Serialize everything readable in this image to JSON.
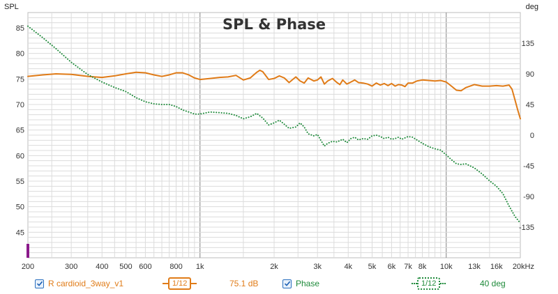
{
  "chart_data": {
    "type": "line",
    "title": "SPL & Phase",
    "left_axis": {
      "label": "SPL",
      "ticks": [
        45,
        50,
        55,
        60,
        65,
        70,
        75,
        80,
        85
      ],
      "range": [
        40,
        88
      ]
    },
    "right_axis": {
      "label": "deg",
      "ticks": [
        -135,
        -90,
        -45,
        0,
        45,
        90,
        135
      ],
      "range": [
        -180,
        180
      ]
    },
    "x_axis": {
      "scale": "log",
      "range": [
        200,
        20000
      ],
      "ticks": [
        {
          "v": 200,
          "label": "200"
        },
        {
          "v": 300,
          "label": "300"
        },
        {
          "v": 400,
          "label": "400"
        },
        {
          "v": 500,
          "label": "500"
        },
        {
          "v": 600,
          "label": "600"
        },
        {
          "v": 800,
          "label": "800"
        },
        {
          "v": 1000,
          "label": "1k"
        },
        {
          "v": 2000,
          "label": "2k"
        },
        {
          "v": 3000,
          "label": "3k"
        },
        {
          "v": 4000,
          "label": "4k"
        },
        {
          "v": 5000,
          "label": "5k"
        },
        {
          "v": 6000,
          "label": "6k"
        },
        {
          "v": 7000,
          "label": "7k"
        },
        {
          "v": 8000,
          "label": "8k"
        },
        {
          "v": 10000,
          "label": "10k"
        },
        {
          "v": 13000,
          "label": "13k"
        },
        {
          "v": 16000,
          "label": "16k"
        },
        {
          "v": 20000,
          "label": "20kHz"
        }
      ]
    },
    "grid": true,
    "colors": {
      "spl": "#e07b17",
      "phase": "#1e8a3a",
      "grid_minor": "#dcdcdc",
      "grid_major": "#8c8c8c",
      "marker": "#8b1a8b"
    },
    "series": [
      {
        "name": "R cardioid_3way_v1",
        "axis": "left",
        "unit": "dB",
        "style": "solid",
        "points": [
          [
            200,
            75.5
          ],
          [
            230,
            75.8
          ],
          [
            260,
            76.0
          ],
          [
            300,
            75.9
          ],
          [
            350,
            75.5
          ],
          [
            400,
            75.3
          ],
          [
            450,
            75.6
          ],
          [
            500,
            76.0
          ],
          [
            550,
            76.3
          ],
          [
            600,
            76.2
          ],
          [
            650,
            75.8
          ],
          [
            700,
            75.5
          ],
          [
            750,
            75.8
          ],
          [
            800,
            76.2
          ],
          [
            850,
            76.2
          ],
          [
            900,
            75.8
          ],
          [
            950,
            75.2
          ],
          [
            1000,
            74.9
          ],
          [
            1100,
            75.1
          ],
          [
            1200,
            75.3
          ],
          [
            1300,
            75.4
          ],
          [
            1400,
            75.7
          ],
          [
            1500,
            74.8
          ],
          [
            1600,
            75.2
          ],
          [
            1700,
            76.3
          ],
          [
            1750,
            76.7
          ],
          [
            1800,
            76.4
          ],
          [
            1900,
            74.9
          ],
          [
            2000,
            75.1
          ],
          [
            2100,
            75.6
          ],
          [
            2200,
            75.2
          ],
          [
            2300,
            74.3
          ],
          [
            2450,
            75.4
          ],
          [
            2550,
            74.6
          ],
          [
            2650,
            74.2
          ],
          [
            2750,
            75.2
          ],
          [
            2900,
            74.6
          ],
          [
            3000,
            74.8
          ],
          [
            3100,
            75.4
          ],
          [
            3200,
            74.0
          ],
          [
            3300,
            74.6
          ],
          [
            3450,
            75.1
          ],
          [
            3600,
            74.3
          ],
          [
            3700,
            73.9
          ],
          [
            3800,
            74.8
          ],
          [
            3950,
            74.0
          ],
          [
            4100,
            74.4
          ],
          [
            4250,
            74.8
          ],
          [
            4400,
            74.3
          ],
          [
            4600,
            74.2
          ],
          [
            4800,
            74.0
          ],
          [
            5000,
            73.6
          ],
          [
            5200,
            74.2
          ],
          [
            5400,
            73.8
          ],
          [
            5600,
            74.1
          ],
          [
            5800,
            73.7
          ],
          [
            6000,
            74.1
          ],
          [
            6200,
            73.6
          ],
          [
            6400,
            73.9
          ],
          [
            6600,
            73.8
          ],
          [
            6800,
            73.5
          ],
          [
            7000,
            74.2
          ],
          [
            7300,
            74.2
          ],
          [
            7600,
            74.6
          ],
          [
            8000,
            74.8
          ],
          [
            8500,
            74.7
          ],
          [
            9000,
            74.6
          ],
          [
            9500,
            74.7
          ],
          [
            10000,
            74.4
          ],
          [
            10500,
            73.6
          ],
          [
            11000,
            72.8
          ],
          [
            11500,
            72.7
          ],
          [
            12000,
            73.3
          ],
          [
            13000,
            73.9
          ],
          [
            14000,
            73.6
          ],
          [
            15000,
            73.6
          ],
          [
            16000,
            73.7
          ],
          [
            17000,
            73.6
          ],
          [
            18000,
            73.8
          ],
          [
            18500,
            73.0
          ],
          [
            19000,
            71.0
          ],
          [
            19500,
            69.0
          ],
          [
            20000,
            67.2
          ]
        ]
      },
      {
        "name": "Phase",
        "axis": "right",
        "unit": "deg",
        "style": "dotted",
        "points": [
          [
            200,
            160
          ],
          [
            230,
            143
          ],
          [
            260,
            127
          ],
          [
            300,
            107
          ],
          [
            350,
            89
          ],
          [
            400,
            78
          ],
          [
            450,
            70
          ],
          [
            500,
            64
          ],
          [
            550,
            55
          ],
          [
            600,
            49
          ],
          [
            650,
            46
          ],
          [
            700,
            45
          ],
          [
            750,
            45
          ],
          [
            800,
            42
          ],
          [
            850,
            37
          ],
          [
            900,
            34
          ],
          [
            950,
            31
          ],
          [
            1000,
            31
          ],
          [
            1100,
            34
          ],
          [
            1200,
            33
          ],
          [
            1300,
            32
          ],
          [
            1400,
            29
          ],
          [
            1500,
            24
          ],
          [
            1600,
            27
          ],
          [
            1700,
            32
          ],
          [
            1800,
            25
          ],
          [
            1900,
            15
          ],
          [
            2000,
            18
          ],
          [
            2100,
            22
          ],
          [
            2200,
            16
          ],
          [
            2300,
            10
          ],
          [
            2450,
            12
          ],
          [
            2550,
            18
          ],
          [
            2650,
            12
          ],
          [
            2750,
            2
          ],
          [
            2900,
            -1
          ],
          [
            3000,
            1
          ],
          [
            3100,
            -8
          ],
          [
            3200,
            -16
          ],
          [
            3300,
            -12
          ],
          [
            3450,
            -9
          ],
          [
            3600,
            -10
          ],
          [
            3800,
            -6
          ],
          [
            3950,
            -11
          ],
          [
            4100,
            -5
          ],
          [
            4250,
            -3
          ],
          [
            4400,
            -7
          ],
          [
            4600,
            -5
          ],
          [
            4800,
            -6
          ],
          [
            5000,
            -1
          ],
          [
            5200,
            0
          ],
          [
            5400,
            -2
          ],
          [
            5600,
            -5
          ],
          [
            5800,
            -3
          ],
          [
            6000,
            -6
          ],
          [
            6200,
            -5
          ],
          [
            6400,
            -3
          ],
          [
            6600,
            -6
          ],
          [
            6800,
            -4
          ],
          [
            7000,
            -2
          ],
          [
            7300,
            -3
          ],
          [
            7600,
            -7
          ],
          [
            8000,
            -12
          ],
          [
            8500,
            -17
          ],
          [
            9000,
            -20
          ],
          [
            9500,
            -22
          ],
          [
            10000,
            -29
          ],
          [
            10500,
            -36
          ],
          [
            11000,
            -42
          ],
          [
            11500,
            -43
          ],
          [
            12000,
            -42
          ],
          [
            13000,
            -48
          ],
          [
            14000,
            -57
          ],
          [
            15000,
            -67
          ],
          [
            16000,
            -75
          ],
          [
            17000,
            -86
          ],
          [
            18000,
            -104
          ],
          [
            19000,
            -119
          ],
          [
            20000,
            -129
          ]
        ]
      }
    ]
  },
  "legend": {
    "spl": {
      "name": "R cardioid_3way_v1",
      "smoothing": "1/12",
      "value": "75.1 dB"
    },
    "phase": {
      "name": "Phase",
      "smoothing": "1/12",
      "value": "40 deg"
    }
  }
}
